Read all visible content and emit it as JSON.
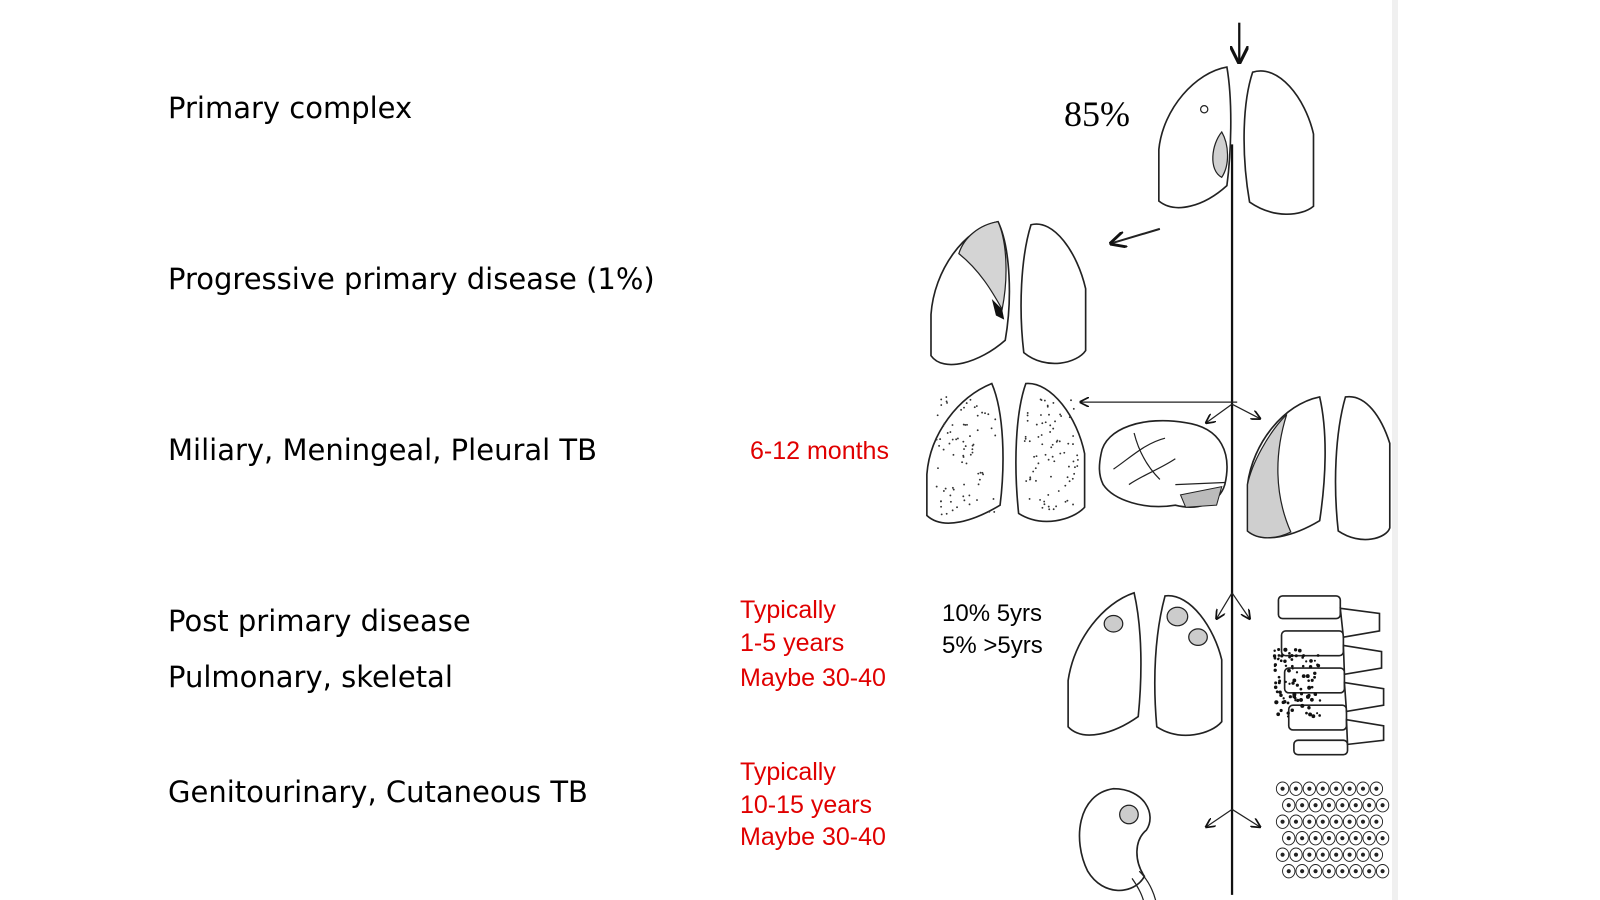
{
  "labels": [
    "Primary complex",
    "Progressive primary disease (1%)",
    "Miliary, Meningeal, Pleural TB",
    "Post primary disease",
    "Pulmonary, skeletal",
    "Genitourinary, Cutaneous TB"
  ],
  "timings": {
    "miliary": "6-12 months",
    "post_primary": [
      "Typically",
      "1-5 years",
      "Maybe 30-40"
    ],
    "genitourinary": [
      "Typically",
      "10-15 years",
      "Maybe 30-40"
    ]
  },
  "risk": [
    "10% 5yrs",
    "5% >5yrs"
  ],
  "primary_percent": "85%"
}
